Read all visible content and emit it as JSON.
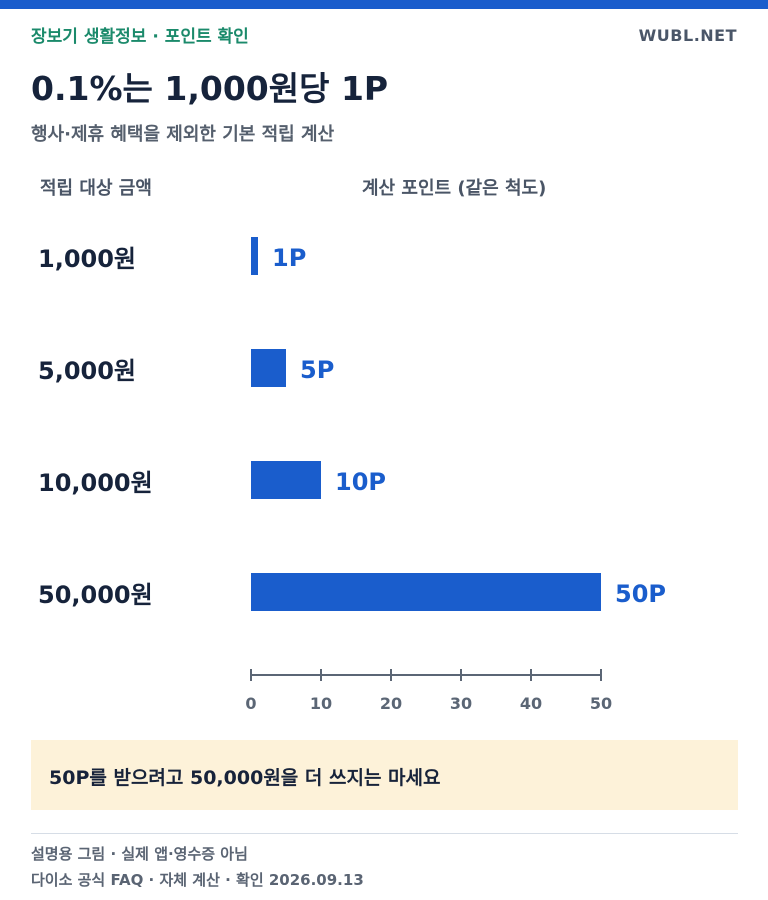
{
  "header": {
    "eyebrow": "장보기 생활정보 · 포인트 확인",
    "brand": "WUBL.NET",
    "title": "0.1%는 1,000원당 1P",
    "subtitle": "행사·제휴 혜택을 제외한 기본 적립 계산"
  },
  "columns": {
    "left": "적립 대상 금액",
    "right": "계산 포인트 (같은 척도)"
  },
  "chart_data": {
    "type": "bar",
    "orientation": "horizontal",
    "categories": [
      "1,000원",
      "5,000원",
      "10,000원",
      "50,000원"
    ],
    "values": [
      1,
      5,
      10,
      50
    ],
    "value_labels": [
      "1P",
      "5P",
      "10P",
      "50P"
    ],
    "xlim": [
      0,
      50
    ],
    "xticks": [
      "0",
      "10",
      "20",
      "30",
      "40",
      "50"
    ],
    "colors": {
      "bar": "#1a5dcc",
      "label": "#1a5dcc",
      "category": "#16233b",
      "axis": "#5b6675"
    }
  },
  "callout": "50P를 받으려고 50,000원을 더 쓰지는 마세요",
  "footer": {
    "line1": "설명용 그림 · 실제 앱·영수증 아님",
    "line2": "다이소 공식 FAQ · 자체 계산 · 확인 2026.09.13"
  }
}
